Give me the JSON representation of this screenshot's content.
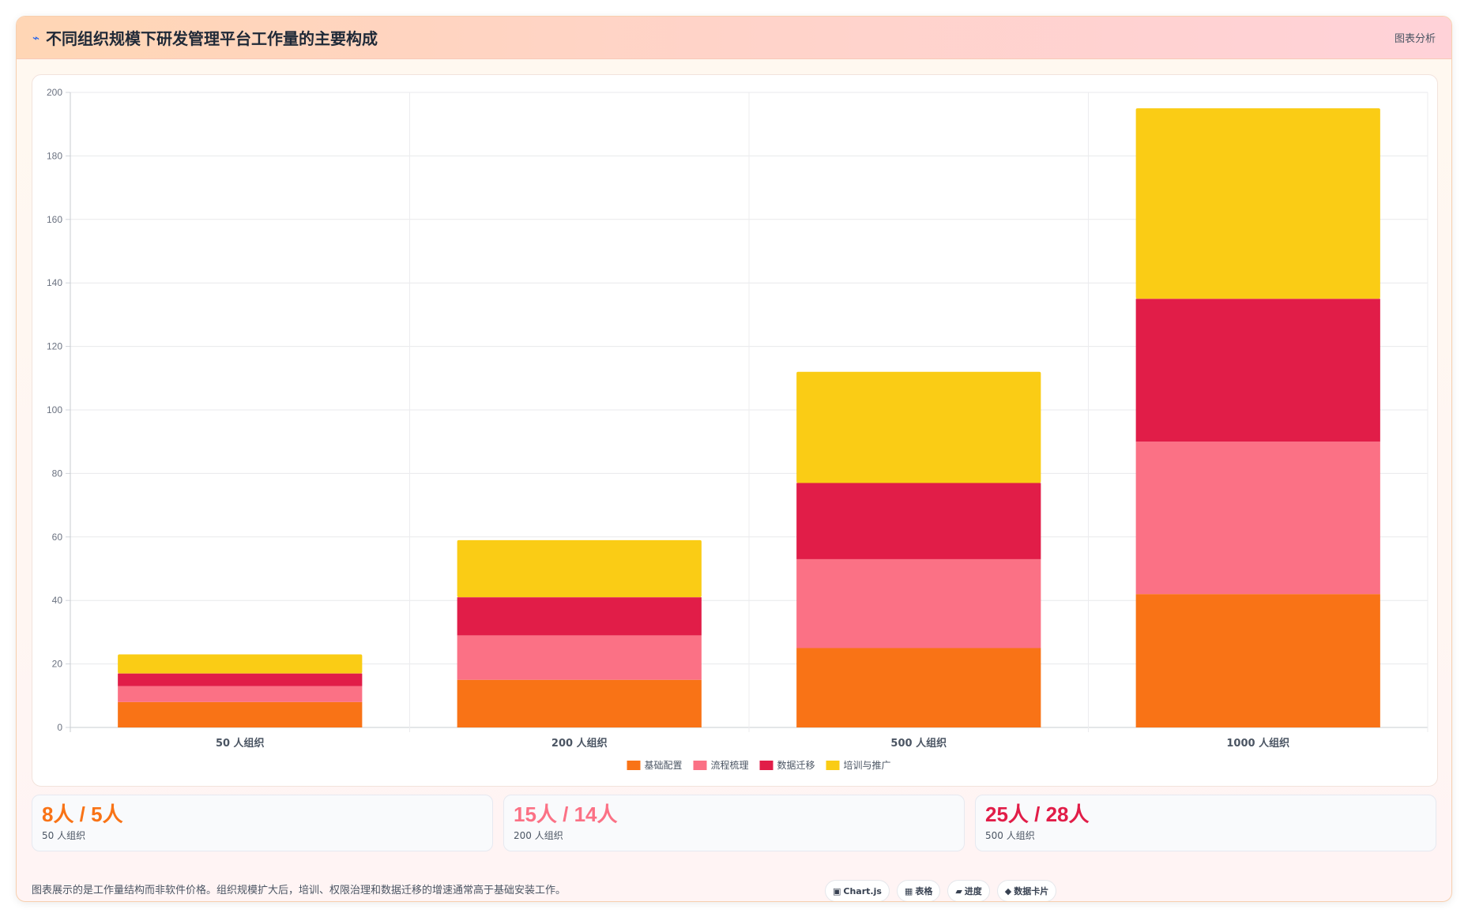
{
  "header": {
    "icon": "chart-icon",
    "title": "不同组织规模下研发管理平台工作量的主要构成",
    "tag": "图表分析"
  },
  "chart_data": {
    "type": "bar",
    "stacked": true,
    "categories": [
      "50 人组织",
      "200 人组织",
      "500 人组织",
      "1000 人组织"
    ],
    "series": [
      {
        "name": "基础配置",
        "color": "#f97316",
        "values": [
          8,
          15,
          25,
          42
        ]
      },
      {
        "name": "流程梳理",
        "color": "#fb7185",
        "values": [
          5,
          14,
          28,
          48
        ]
      },
      {
        "name": "数据迁移",
        "color": "#e11d48",
        "values": [
          4,
          12,
          24,
          45
        ]
      },
      {
        "name": "培训与推广",
        "color": "#facc15",
        "values": [
          6,
          18,
          35,
          60
        ]
      }
    ],
    "ylim": [
      0,
      200
    ],
    "yticks": [
      0,
      20,
      40,
      60,
      80,
      100,
      120,
      140,
      160,
      180,
      200
    ],
    "grid": true,
    "legend": "bottom",
    "title": "",
    "xlabel": "",
    "ylabel": ""
  },
  "stats": [
    {
      "value": "8人 / 5人",
      "label": "50 人组织",
      "color": "#f97316"
    },
    {
      "value": "15人 / 14人",
      "label": "200 人组织",
      "color": "#fb7185"
    },
    {
      "value": "25人 / 28人",
      "label": "500 人组织",
      "color": "#e11d48"
    }
  ],
  "footnote": "图表展示的是工作量结构而非软件价格。组织规模扩大后，培训、权限治理和数据迁移的增速通常高于基础安装工作。",
  "chips": [
    {
      "icon": "▣",
      "icon_name": "chart-icon",
      "label": "Chart.js"
    },
    {
      "icon": "▦",
      "icon_name": "table-icon",
      "label": "表格"
    },
    {
      "icon": "▰",
      "icon_name": "progress-icon",
      "label": "进度"
    },
    {
      "icon": "◆",
      "icon_name": "data-card-icon",
      "label": "数据卡片"
    }
  ]
}
